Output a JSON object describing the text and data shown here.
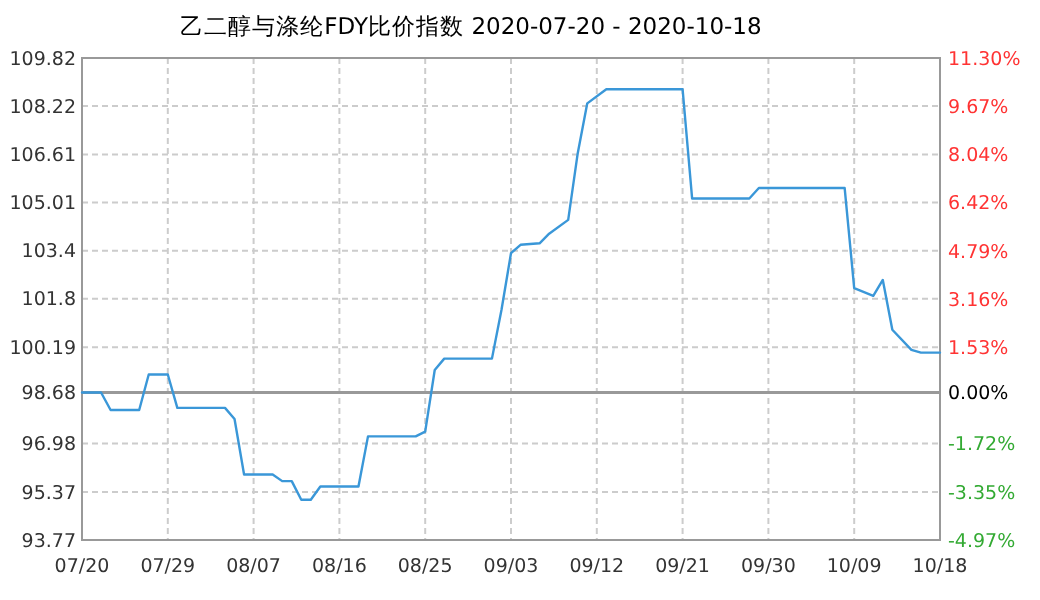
{
  "chart_data": {
    "type": "line",
    "title": "乙二醇与涤纶FDY比价指数 2020-07-20 - 2020-10-18",
    "x": [
      "2020-07-20",
      "2020-07-22",
      "2020-07-23",
      "2020-07-26",
      "2020-07-27",
      "2020-07-29",
      "2020-07-30",
      "2020-08-04",
      "2020-08-05",
      "2020-08-06",
      "2020-08-09",
      "2020-08-10",
      "2020-08-11",
      "2020-08-12",
      "2020-08-13",
      "2020-08-14",
      "2020-08-18",
      "2020-08-19",
      "2020-08-24",
      "2020-08-25",
      "2020-08-26",
      "2020-08-27",
      "2020-09-01",
      "2020-09-02",
      "2020-09-03",
      "2020-09-04",
      "2020-09-06",
      "2020-09-07",
      "2020-09-09",
      "2020-09-10",
      "2020-09-11",
      "2020-09-13",
      "2020-09-21",
      "2020-09-22",
      "2020-09-28",
      "2020-09-29",
      "2020-10-08",
      "2020-10-09",
      "2020-10-11",
      "2020-10-12",
      "2020-10-13",
      "2020-10-15",
      "2020-10-16",
      "2020-10-18"
    ],
    "series": [
      {
        "color": "#3a97d8",
        "values": [
          98.68,
          98.68,
          98.1,
          98.1,
          99.28,
          99.28,
          98.17,
          98.17,
          97.8,
          95.95,
          95.95,
          95.73,
          95.73,
          95.11,
          95.11,
          95.55,
          95.55,
          97.22,
          97.22,
          97.38,
          99.43,
          99.81,
          99.81,
          101.43,
          103.32,
          103.6,
          103.65,
          103.97,
          104.43,
          106.65,
          108.31,
          108.78,
          108.78,
          105.14,
          105.14,
          105.49,
          105.49,
          102.16,
          101.9,
          102.43,
          100.77,
          100.1,
          100.01,
          100.01
        ]
      }
    ],
    "xlim": [
      "2020-07-20",
      "2020-10-18"
    ],
    "xticks": [
      {
        "value": "2020-07-20",
        "label": "07/20"
      },
      {
        "value": "2020-07-29",
        "label": "07/29"
      },
      {
        "value": "2020-08-07",
        "label": "08/07"
      },
      {
        "value": "2020-08-16",
        "label": "08/16"
      },
      {
        "value": "2020-08-25",
        "label": "08/25"
      },
      {
        "value": "2020-09-03",
        "label": "09/03"
      },
      {
        "value": "2020-09-12",
        "label": "09/12"
      },
      {
        "value": "2020-09-21",
        "label": "09/21"
      },
      {
        "value": "2020-09-30",
        "label": "09/30"
      },
      {
        "value": "2020-10-09",
        "label": "10/09"
      },
      {
        "value": "2020-10-18",
        "label": "10/18"
      }
    ],
    "ylim": [
      93.77,
      109.82
    ],
    "yticks": [
      93.77,
      95.37,
      96.98,
      98.68,
      100.19,
      101.8,
      103.4,
      105.01,
      106.61,
      108.22,
      109.82
    ],
    "y2lim": [
      -4.97,
      11.3
    ],
    "y2ticks": [
      {
        "value": -4.97,
        "label": "-4.97%"
      },
      {
        "value": -3.35,
        "label": "-3.35%"
      },
      {
        "value": -1.72,
        "label": "-1.72%"
      },
      {
        "value": 0,
        "label": "0.00%"
      },
      {
        "value": 1.53,
        "label": "1.53%"
      },
      {
        "value": 3.16,
        "label": "3.16%"
      },
      {
        "value": 4.79,
        "label": "4.79%"
      },
      {
        "value": 6.42,
        "label": "6.42%"
      },
      {
        "value": 8.04,
        "label": "8.04%"
      },
      {
        "value": 9.67,
        "label": "9.67%"
      },
      {
        "value": 11.3,
        "label": "11.30%"
      }
    ],
    "ref_lines": [
      {
        "axis": "y",
        "value": 98.68,
        "color": "#999999"
      }
    ],
    "grid": true,
    "line_style": "solid"
  }
}
